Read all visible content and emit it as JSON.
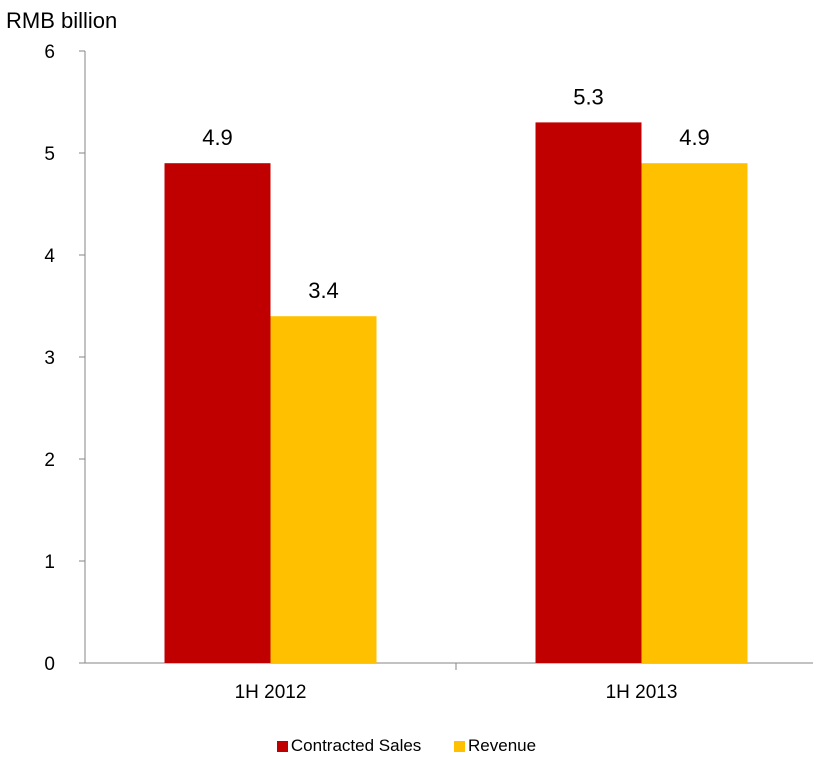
{
  "chart_data": {
    "type": "bar",
    "title": "",
    "ylabel": "RMB billion",
    "xlabel": "",
    "categories": [
      "1H 2012",
      "1H 2013"
    ],
    "series": [
      {
        "name": "Contracted Sales",
        "values": [
          4.9,
          5.3
        ],
        "color": "#c00000"
      },
      {
        "name": "Revenue",
        "values": [
          3.4,
          4.9
        ],
        "color": "#ffc000"
      }
    ],
    "ylim": [
      0,
      6
    ],
    "yticks": [
      0,
      1,
      2,
      3,
      4,
      5,
      6
    ],
    "data_labels": true,
    "grid": false,
    "legend_position": "bottom"
  }
}
